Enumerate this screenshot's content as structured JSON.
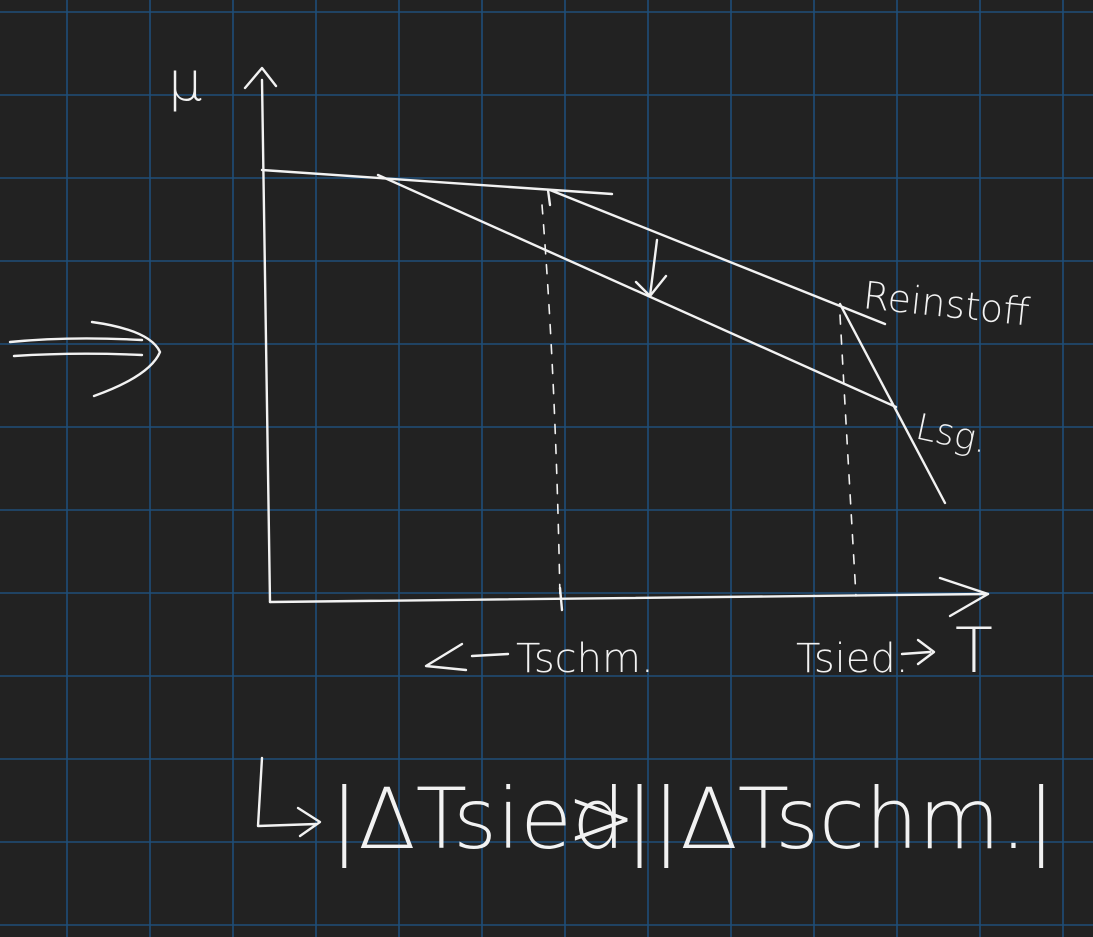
{
  "colors": {
    "background": "#222222",
    "grid": "#1f4e79",
    "ink": "#f2f2f2"
  },
  "axes": {
    "y_label": "μ",
    "x_label": "T"
  },
  "curves": {
    "pure_label": "Reinstoff",
    "solution_label": "Lsg."
  },
  "points": {
    "melting_label": "Tschm.",
    "boiling_label": "Tsied."
  },
  "conclusion": {
    "left_part": "|ΔTsied|",
    "operator": ">",
    "right_part": "|ΔTschm.|"
  }
}
